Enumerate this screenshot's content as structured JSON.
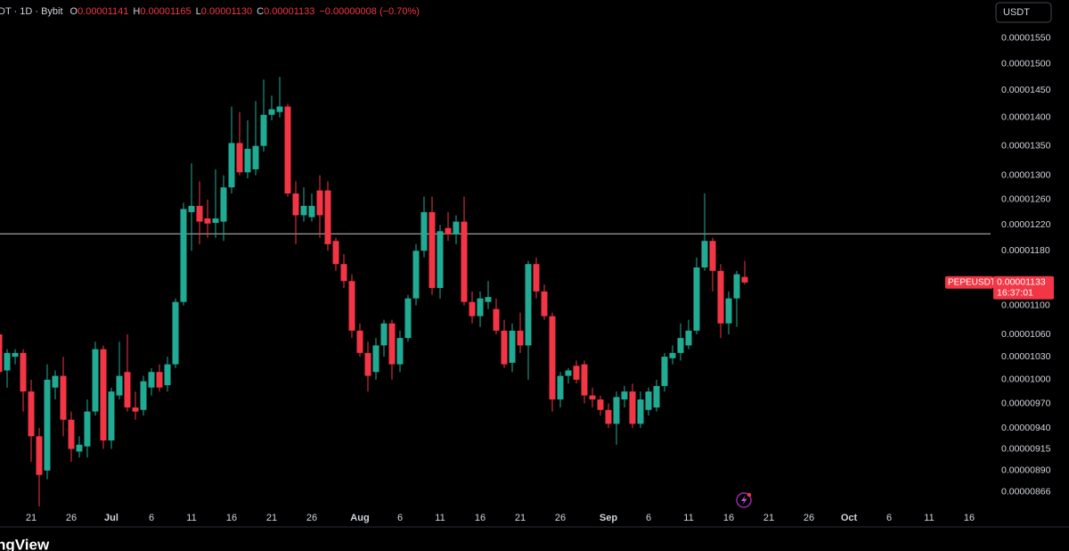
{
  "chart_data": {
    "type": "candlestick",
    "header": {
      "symbol_info": "DT · 1D · Bybit",
      "ohlc": [
        {
          "key": "O",
          "text": "0.00001141"
        },
        {
          "key": "H",
          "text": "0.00001165"
        },
        {
          "key": "L",
          "text": "0.00001130"
        },
        {
          "key": "C",
          "text": "0.00001133"
        }
      ],
      "change": "−0.00000008 (−0.70%)"
    },
    "currency_button": "USDT",
    "price_marker": {
      "symbol": "PEPEUSDT",
      "price": "0.00001133",
      "countdown": "16:37:01"
    },
    "footer_brand": "ngView",
    "log_scale": true,
    "grid": false,
    "up_color": "#22ab94",
    "down_color": "#f23645",
    "hline": {
      "value": 1.206e-05,
      "color": "#c8c8c8"
    },
    "ylim": [
      8.48e-06,
      1.628e-05
    ],
    "yticks": [
      {
        "value": 1.55e-05,
        "label": "0.00001550"
      },
      {
        "value": 1.5e-05,
        "label": "0.00001500"
      },
      {
        "value": 1.45e-05,
        "label": "0.00001450"
      },
      {
        "value": 1.4e-05,
        "label": "0.00001400"
      },
      {
        "value": 1.35e-05,
        "label": "0.00001350"
      },
      {
        "value": 1.3e-05,
        "label": "0.00001300"
      },
      {
        "value": 1.26e-05,
        "label": "0.00001260"
      },
      {
        "value": 1.22e-05,
        "label": "0.00001220"
      },
      {
        "value": 1.18e-05,
        "label": "0.00001180"
      },
      {
        "value": 1.1e-05,
        "label": "0.00001100"
      },
      {
        "value": 1.06e-05,
        "label": "0.00001060"
      },
      {
        "value": 1.03e-05,
        "label": "0.00001030"
      },
      {
        "value": 1e-05,
        "label": "0.00001000"
      },
      {
        "value": 9.7e-06,
        "label": "0.00000970"
      },
      {
        "value": 9.4e-06,
        "label": "0.00000940"
      },
      {
        "value": 9.15e-06,
        "label": "0.00000915"
      },
      {
        "value": 8.9e-06,
        "label": "0.00000890"
      },
      {
        "value": 8.66e-06,
        "label": "0.00000866"
      }
    ],
    "categories": [
      null,
      null,
      null,
      null,
      "21",
      null,
      null,
      null,
      null,
      "26",
      null,
      null,
      null,
      null,
      "Jul",
      null,
      null,
      null,
      null,
      "6",
      null,
      null,
      null,
      null,
      "11",
      null,
      null,
      null,
      null,
      "16",
      null,
      null,
      null,
      null,
      "21",
      null,
      null,
      null,
      null,
      "26",
      null,
      null,
      null,
      null,
      null,
      "Aug",
      null,
      null,
      null,
      null,
      "6",
      null,
      null,
      null,
      null,
      "11",
      null,
      null,
      null,
      null,
      "16",
      null,
      null,
      null,
      null,
      "21",
      null,
      null,
      null,
      null,
      "26",
      null,
      null,
      null,
      null,
      null,
      "Sep",
      null,
      null,
      null,
      null,
      "6",
      null,
      null,
      null,
      null,
      "11",
      null,
      null,
      null,
      null,
      "16",
      null,
      null,
      null,
      null,
      "21",
      null,
      null,
      null,
      null,
      "26",
      null,
      null,
      null,
      null,
      "Oct",
      null,
      null,
      null,
      null,
      "6",
      null,
      null,
      null,
      null,
      "11",
      null,
      null,
      null,
      null,
      "16"
    ],
    "open": [
      1.06e-05,
      1.012e-05,
      1.03e-05,
      1.035e-05,
      9.85e-06,
      9.3e-06,
      8.9e-06,
      9.9e-06,
      1.005e-05,
      9.5e-06,
      9.12e-06,
      9.18e-06,
      9.6e-06,
      1.04e-05,
      9.25e-06,
      9.8e-06,
      1.01e-05,
      9.65e-06,
      9.62e-06,
      9.9e-06,
      1.01e-05,
      9.93e-06,
      1.02e-05,
      1.105e-05,
      1.24e-05,
      1.25e-05,
      1.23e-05,
      1.223e-05,
      1.225e-05,
      1.28e-05,
      1.355e-05,
      1.305e-05,
      1.31e-05,
      1.35e-05,
      1.405e-05,
      1.41e-05,
      1.42e-05,
      1.27e-05,
      1.235e-05,
      1.232e-05,
      1.275e-05,
      1.275e-05,
      1.195e-05,
      1.16e-05,
      1.135e-05,
      1.065e-05,
      1.035e-05,
      1.01e-05,
      1.045e-05,
      1.075e-05,
      1.02e-05,
      1.055e-05,
      1.11e-05,
      1.18e-05,
      1.24e-05,
      1.125e-05,
      1.215e-05,
      1.205e-05,
      1.225e-05,
      1.105e-05,
      1.085e-05,
      1.105e-05,
      1.095e-05,
      1.065e-05,
      1.022e-05,
      1.065e-05,
      1.045e-05,
      1.16e-05,
      1.12e-05,
      1.085e-05,
      9.75e-06,
      1.005e-05,
      1.018e-05,
      1.02e-05,
      9.8e-06,
      9.75e-06,
      9.62e-06,
      9.45e-06,
      9.75e-06,
      9.85e-06,
      9.45e-06,
      9.62e-06,
      9.65e-06,
      9.92e-06,
      1.028e-05,
      1.035e-05,
      1.045e-05,
      1.065e-05,
      1.155e-05,
      1.195e-05,
      1.15e-05,
      1.075e-05,
      1.11e-05,
      1.141e-05,
      null,
      null,
      null,
      null,
      null,
      null,
      null,
      null,
      null,
      null,
      null,
      null,
      null,
      null,
      null,
      null,
      null,
      null,
      null,
      null,
      null,
      null,
      null,
      null,
      null,
      null,
      null,
      null
    ],
    "high": [
      1.068e-05,
      1.04e-05,
      1.04e-05,
      1.04e-05,
      1e-05,
      9.4e-06,
      1.02e-05,
      1.012e-05,
      1.03e-05,
      9.6e-06,
      9.3e-06,
      9.75e-06,
      1.05e-05,
      1.045e-05,
      9.9e-06,
      1.05e-05,
      1.06e-05,
      9.85e-06,
      1.005e-05,
      1.015e-05,
      1.02e-05,
      1.03e-05,
      1.11e-05,
      1.255e-05,
      1.32e-05,
      1.29e-05,
      1.26e-05,
      1.31e-05,
      1.3e-05,
      1.42e-05,
      1.41e-05,
      1.395e-05,
      1.43e-05,
      1.47e-05,
      1.44e-05,
      1.475e-05,
      1.425e-05,
      1.29e-05,
      1.28e-05,
      1.27e-05,
      1.3e-05,
      1.29e-05,
      1.2e-05,
      1.175e-05,
      1.145e-05,
      1.075e-05,
      1.05e-05,
      1.055e-05,
      1.08e-05,
      1.08e-05,
      1.065e-05,
      1.115e-05,
      1.19e-05,
      1.265e-05,
      1.265e-05,
      1.22e-05,
      1.24e-05,
      1.235e-05,
      1.265e-05,
      1.12e-05,
      1.12e-05,
      1.135e-05,
      1.11e-05,
      1.08e-05,
      1.075e-05,
      1.09e-05,
      1.165e-05,
      1.17e-05,
      1.13e-05,
      1.09e-05,
      1.01e-05,
      1.015e-05,
      1.025e-05,
      1.025e-05,
      9.9e-06,
      9.8e-06,
      9.7e-06,
      9.85e-06,
      9.92e-06,
      9.95e-06,
      9.85e-06,
      9.9e-06,
      1e-05,
      1.035e-05,
      1.045e-05,
      1.075e-05,
      1.08e-05,
      1.17e-05,
      1.27e-05,
      1.2e-05,
      1.16e-05,
      1.12e-05,
      1.15e-05,
      1.165e-05,
      null,
      null,
      null,
      null,
      null,
      null,
      null,
      null,
      null,
      null,
      null,
      null,
      null,
      null,
      null,
      null,
      null,
      null,
      null,
      null,
      null,
      null,
      null,
      null,
      null,
      null,
      null,
      null
    ],
    "low": [
      1e-05,
      9.9e-06,
      1.02e-05,
      9.6e-06,
      9e-06,
      8.5e-06,
      8.8e-06,
      9.75e-06,
      9.3e-06,
      9e-06,
      9.05e-06,
      9.05e-06,
      9.55e-06,
      9.15e-06,
      9.15e-06,
      9.75e-06,
      9.6e-06,
      9.5e-06,
      9.55e-06,
      9.8e-06,
      9.85e-06,
      9.85e-06,
      1.015e-05,
      1.1e-05,
      1.18e-05,
      1.19e-05,
      1.2e-05,
      1.2e-05,
      1.195e-05,
      1.27e-05,
      1.3e-05,
      1.295e-05,
      1.3e-05,
      1.34e-05,
      1.395e-05,
      1.4e-05,
      1.265e-05,
      1.19e-05,
      1.225e-05,
      1.225e-05,
      1.2e-05,
      1.18e-05,
      1.15e-05,
      1.125e-05,
      1.055e-05,
      1.03e-05,
      9.85e-06,
      1e-05,
      1.03e-05,
      1e-05,
      1.01e-05,
      1.05e-05,
      1.1e-05,
      1.17e-05,
      1.115e-05,
      1.11e-05,
      1.195e-05,
      1.19e-05,
      1.1e-05,
      1.075e-05,
      1.07e-05,
      1.095e-05,
      1.06e-05,
      1.015e-05,
      1.01e-05,
      1.035e-05,
      1e-05,
      1.11e-05,
      1.08e-05,
      9.6e-06,
      9.65e-06,
      9.95e-06,
      9.95e-06,
      9.7e-06,
      9.65e-06,
      9.55e-06,
      9.4e-06,
      9.2e-06,
      9.65e-06,
      9.4e-06,
      9.4e-06,
      9.55e-06,
      9.6e-06,
      9.85e-06,
      1.02e-05,
      1.025e-05,
      1.04e-05,
      1.06e-05,
      1.15e-05,
      1.12e-05,
      1.055e-05,
      1.06e-05,
      1.07e-05,
      1.13e-05,
      null,
      null,
      null,
      null,
      null,
      null,
      null,
      null,
      null,
      null,
      null,
      null,
      null,
      null,
      null,
      null,
      null,
      null,
      null,
      null,
      null,
      null,
      null,
      null,
      null,
      null,
      null,
      null
    ],
    "close": [
      1.01e-05,
      1.035e-05,
      1.035e-05,
      9.85e-06,
      9.3e-06,
      8.85e-06,
      1e-05,
      1.005e-05,
      9.5e-06,
      9.15e-06,
      9.2e-06,
      9.6e-06,
      1.04e-05,
      9.25e-06,
      9.85e-06,
      1.005e-05,
      9.65e-06,
      9.6e-06,
      9.98e-06,
      1.01e-05,
      9.9e-06,
      1.02e-05,
      1.105e-05,
      1.245e-05,
      1.25e-05,
      1.225e-05,
      1.222e-05,
      1.23e-05,
      1.28e-05,
      1.355e-05,
      1.305e-05,
      1.345e-05,
      1.35e-05,
      1.405e-05,
      1.415e-05,
      1.42e-05,
      1.27e-05,
      1.235e-05,
      1.25e-05,
      1.25e-05,
      1.235e-05,
      1.19e-05,
      1.16e-05,
      1.135e-05,
      1.065e-05,
      1.035e-05,
      1.005e-05,
      1.045e-05,
      1.075e-05,
      1.02e-05,
      1.055e-05,
      1.11e-05,
      1.18e-05,
      1.24e-05,
      1.125e-05,
      1.21e-05,
      1.205e-05,
      1.225e-05,
      1.105e-05,
      1.085e-05,
      1.11e-05,
      1.112e-05,
      1.065e-05,
      1.02e-05,
      1.065e-05,
      1.045e-05,
      1.16e-05,
      1.12e-05,
      1.085e-05,
      9.75e-06,
      1.005e-05,
      1.012e-05,
      1e-05,
      9.8e-06,
      9.75e-06,
      9.62e-06,
      9.45e-06,
      9.78e-06,
      9.85e-06,
      9.45e-06,
      9.75e-06,
      9.85e-06,
      9.92e-06,
      1.03e-05,
      1.035e-05,
      1.055e-05,
      1.065e-05,
      1.155e-05,
      1.195e-05,
      1.15e-05,
      1.075e-05,
      1.11e-05,
      1.145e-05,
      1.133e-05,
      null,
      null,
      null,
      null,
      null,
      null,
      null,
      null,
      null,
      null,
      null,
      null,
      null,
      null,
      null,
      null,
      null,
      null,
      null,
      null,
      null,
      null,
      null,
      null,
      null,
      null,
      null,
      null
    ]
  }
}
